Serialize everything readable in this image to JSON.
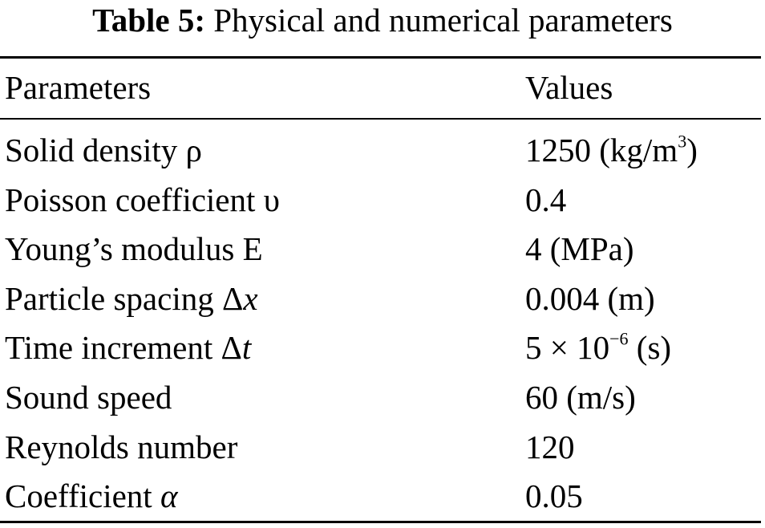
{
  "caption": {
    "label": "Table 5:",
    "title": "Physical and numerical parameters"
  },
  "table": {
    "headers": {
      "parameter": "Parameters",
      "value": "Values"
    },
    "rows": [
      {
        "name": "Solid density",
        "symbol": "ρ",
        "symbol_italic": false,
        "value": "1250 (kg/m",
        "value_sup": "3",
        "value_suffix": ")"
      },
      {
        "name": "Poisson coefficient",
        "symbol": "υ",
        "symbol_italic": false,
        "value": "0.4",
        "value_sup": "",
        "value_suffix": ""
      },
      {
        "name": "Young’s modulus",
        "symbol": "E",
        "symbol_italic": false,
        "value": "4 (MPa)",
        "value_sup": "",
        "value_suffix": ""
      },
      {
        "name": "Particle spacing",
        "symbol": "Δ",
        "symbol_var": "x",
        "symbol_italic": true,
        "value": "0.004 (m)",
        "value_sup": "",
        "value_suffix": ""
      },
      {
        "name": "Time increment",
        "symbol": "Δ",
        "symbol_var": "t",
        "symbol_italic": true,
        "value": "5 × 10",
        "value_sup": "−6",
        "value_suffix": " (s)"
      },
      {
        "name": "Sound speed",
        "symbol": "",
        "symbol_italic": false,
        "value": "60 (m/s)",
        "value_sup": "",
        "value_suffix": ""
      },
      {
        "name": "Reynolds number",
        "symbol": "",
        "symbol_italic": false,
        "value": "120",
        "value_sup": "",
        "value_suffix": ""
      },
      {
        "name": "Coefficient",
        "symbol": "α",
        "symbol_italic": true,
        "value": "0.05",
        "value_sup": "",
        "value_suffix": ""
      }
    ]
  }
}
